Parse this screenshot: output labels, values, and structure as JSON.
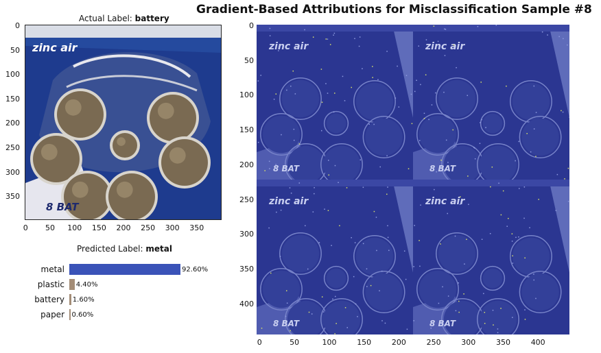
{
  "title": "Gradient-Based Attributions for Misclassification Sample #8",
  "actual": {
    "prefix": "Actual Label: ",
    "value": "battery"
  },
  "predicted": {
    "prefix": "Predicted Label: ",
    "value": "metal"
  },
  "image_text": {
    "brand": "zinc air",
    "count": "8 BAT"
  },
  "left_axes": {
    "x_ticks": [
      "0",
      "50",
      "100",
      "150",
      "200",
      "250",
      "300",
      "350"
    ],
    "y_ticks": [
      "0",
      "50",
      "100",
      "150",
      "200",
      "250",
      "300",
      "350"
    ]
  },
  "right_axes": {
    "x_ticks": [
      "0",
      "50",
      "100",
      "150",
      "200",
      "250",
      "300",
      "350",
      "400"
    ],
    "y_ticks": [
      "0",
      "50",
      "100",
      "150",
      "200",
      "250",
      "300",
      "350",
      "400"
    ]
  },
  "chart_data": {
    "type": "bar",
    "orientation": "horizontal",
    "categories": [
      "metal",
      "plastic",
      "battery",
      "paper"
    ],
    "values": [
      92.6,
      4.4,
      1.6,
      0.6
    ],
    "value_labels": [
      "92.60%",
      "4.40%",
      "1.60%",
      "0.60%"
    ],
    "colors": [
      "#3a53b8",
      "#a48d77",
      "#a48d77",
      "#a48d77"
    ],
    "xlim": [
      0,
      100
    ]
  },
  "colors": {
    "heat_blue": "#2a3590",
    "photo_blue": "#1f3f8f",
    "coin": "#7a6a52"
  }
}
